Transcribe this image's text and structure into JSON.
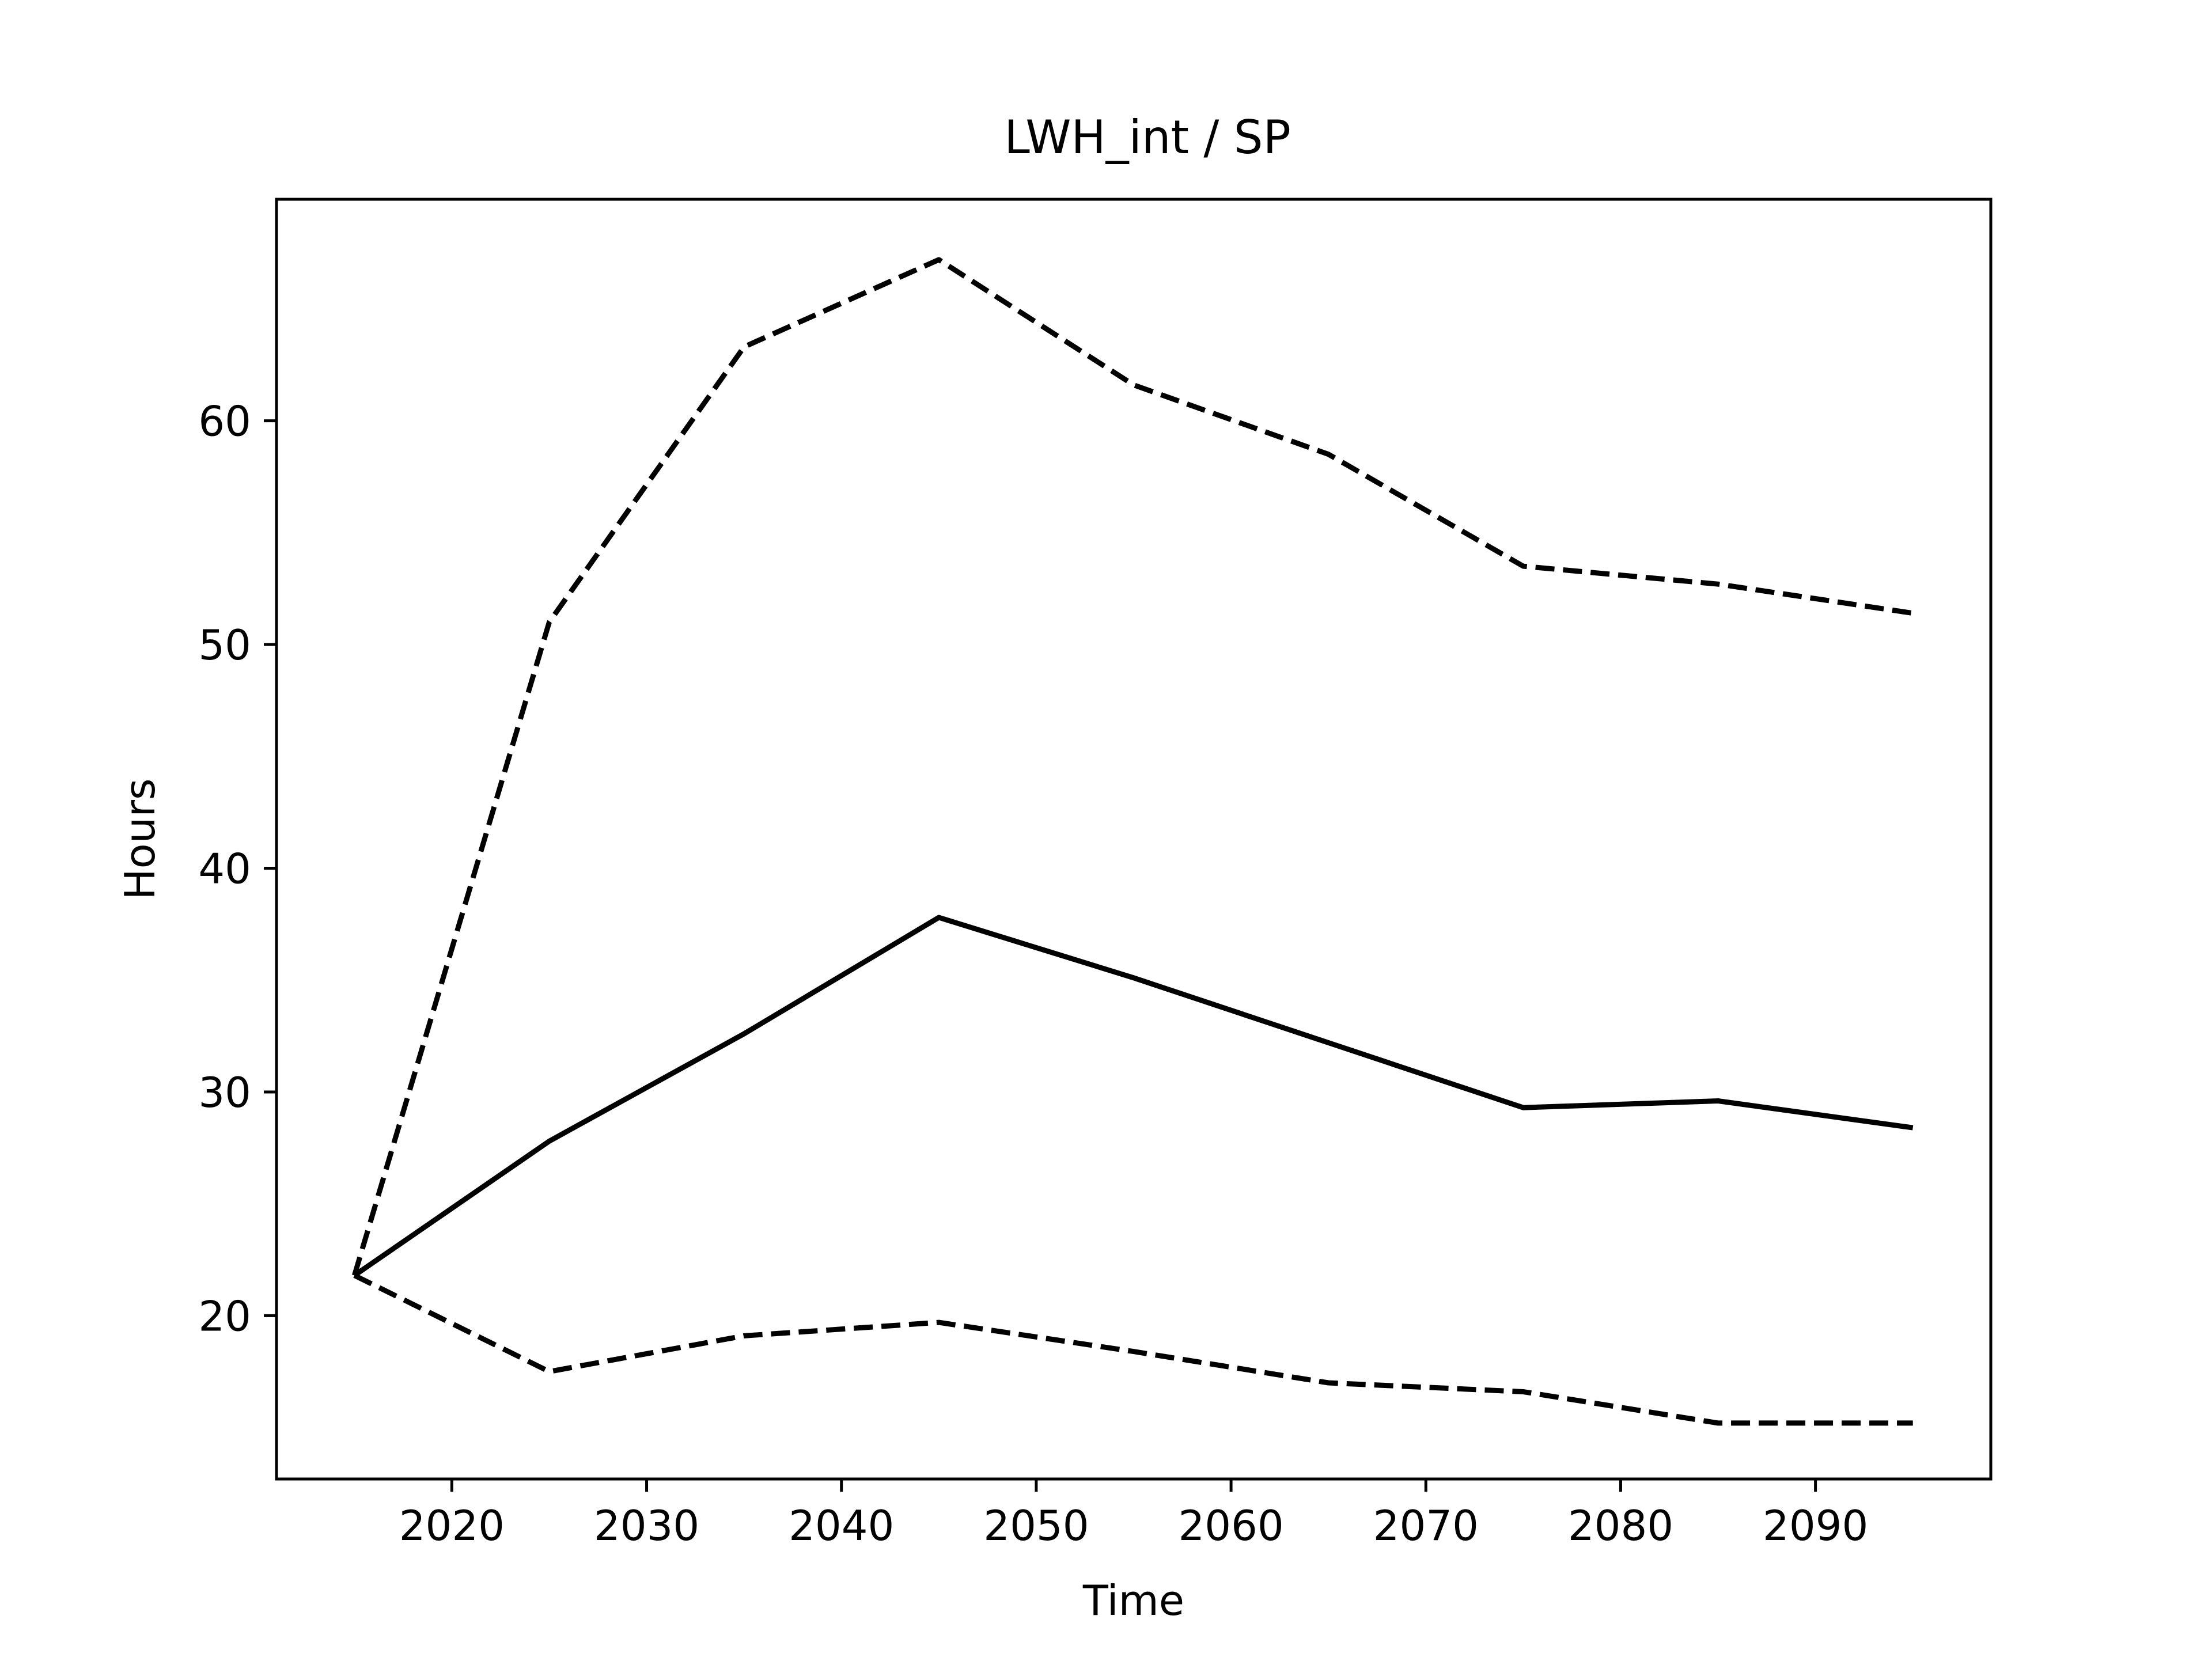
{
  "chart_data": {
    "type": "line",
    "title": "LWH_int / SP",
    "xlabel": "Time",
    "ylabel": "Hours",
    "xlim": [
      2011,
      2099
    ],
    "ylim": [
      12.7,
      69.9
    ],
    "xticks": [
      2020,
      2030,
      2040,
      2050,
      2060,
      2070,
      2080,
      2090
    ],
    "yticks": [
      20,
      30,
      40,
      50,
      60
    ],
    "grid": false,
    "legend": "none",
    "x": [
      2015,
      2025,
      2035,
      2045,
      2055,
      2065,
      2075,
      2085,
      2095
    ],
    "series": [
      {
        "style": "solid",
        "color": "#000000",
        "values": [
          21.8,
          27.8,
          32.6,
          37.8,
          35.1,
          32.2,
          29.3,
          29.6,
          28.4
        ]
      },
      {
        "style": "dashed",
        "color": "#000000",
        "values": [
          21.8,
          51.0,
          63.3,
          67.2,
          61.6,
          58.5,
          53.5,
          52.7,
          51.4
        ]
      },
      {
        "style": "dashed",
        "color": "#000000",
        "values": [
          21.8,
          17.5,
          19.1,
          19.7,
          18.4,
          17.0,
          16.6,
          15.2,
          15.2
        ]
      }
    ]
  }
}
